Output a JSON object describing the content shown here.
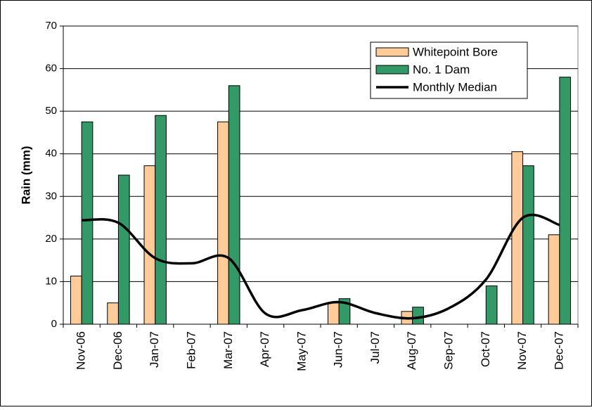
{
  "chart_data": {
    "type": "bar",
    "y_label": "Rain (mm)",
    "categories": [
      "Nov-06",
      "Dec-06",
      "Jan-07",
      "Feb-07",
      "Mar-07",
      "Apr-07",
      "May-07",
      "Jun-07",
      "Jul-07",
      "Aug-07",
      "Sep-07",
      "Oct-07",
      "Nov-07",
      "Dec-07"
    ],
    "series": [
      {
        "name": "Whitepoint Bore",
        "type": "bar",
        "color": "#ffcc99",
        "values": [
          11.3,
          5,
          37.2,
          0,
          47.5,
          0,
          0,
          5,
          0,
          3,
          0,
          0,
          40.5,
          21
        ]
      },
      {
        "name": "No. 1 Dam",
        "type": "bar",
        "color": "#339966",
        "values": [
          47.5,
          35,
          49,
          0,
          56,
          0,
          0,
          6,
          0,
          4,
          0,
          9,
          37.2,
          58
        ]
      },
      {
        "name": "Monthly Median",
        "type": "line",
        "color": "#000000",
        "values": [
          24.4,
          23.8,
          15.5,
          14.3,
          15.5,
          2.5,
          3.3,
          5.2,
          2.6,
          1.4,
          3.8,
          10.5,
          25,
          23.3
        ]
      }
    ],
    "ylim": [
      0,
      70
    ],
    "yticks": [
      0,
      10,
      20,
      30,
      40,
      50,
      60,
      70
    ],
    "grid": true,
    "legend": "upper right"
  }
}
